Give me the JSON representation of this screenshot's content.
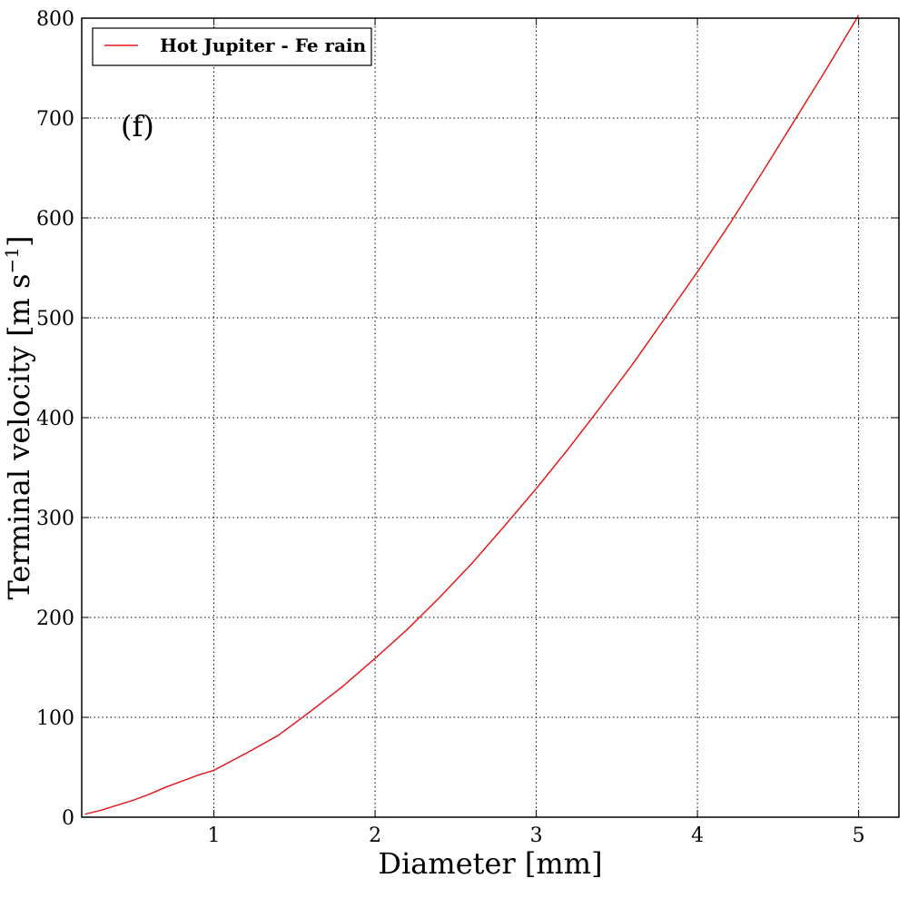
{
  "chart_data": {
    "type": "line",
    "xlabel": "Diameter [mm]",
    "ylabel_main": "Terminal velocity [m s",
    "ylabel_sup": "−1",
    "ylabel_close": "]",
    "annotation": "(f)",
    "xlim": [
      0.18,
      5.25
    ],
    "ylim": [
      0,
      800
    ],
    "xticks": [
      1,
      2,
      3,
      4,
      5
    ],
    "yticks": [
      0,
      100,
      200,
      300,
      400,
      500,
      600,
      700,
      800
    ],
    "grid": true,
    "legend_position": "top-left",
    "series": [
      {
        "name": "Hot Jupiter - Fe rain",
        "color": "#e41a1c",
        "x": [
          0.2,
          0.3,
          0.4,
          0.5,
          0.6,
          0.7,
          0.8,
          0.9,
          1.0,
          1.2,
          1.4,
          1.6,
          1.8,
          2.0,
          2.2,
          2.4,
          2.6,
          2.8,
          3.0,
          3.2,
          3.4,
          3.6,
          3.8,
          4.0,
          4.2,
          4.4,
          4.6,
          4.8,
          5.0
        ],
        "y": [
          3,
          7,
          12,
          17,
          23,
          30,
          36,
          42,
          47,
          64,
          82,
          106,
          131,
          159,
          188,
          220,
          254,
          291,
          329,
          369,
          411,
          454,
          500,
          546,
          594,
          645,
          697,
          749,
          803
        ]
      }
    ]
  }
}
